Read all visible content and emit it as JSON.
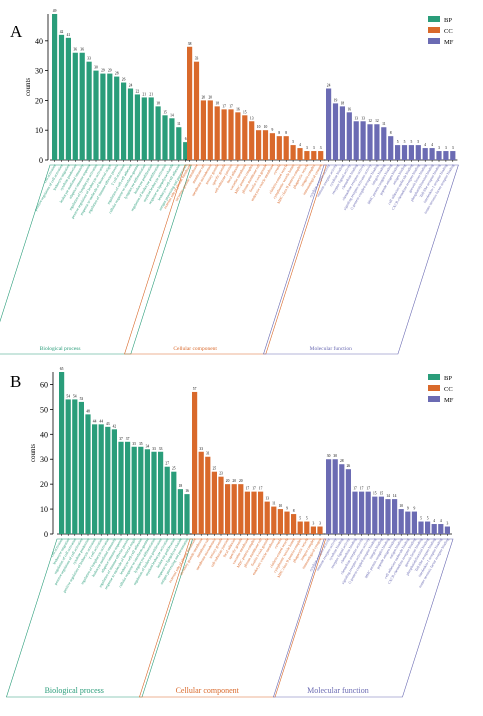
{
  "colors": {
    "BP": "#2a9d7a",
    "CC": "#d9692b",
    "MF": "#6b6bb3"
  },
  "chart_data": [
    {
      "type": "bar",
      "panel_letter": "A",
      "ylabel": "counts",
      "ylim": [
        0,
        49
      ],
      "yticks": [
        0,
        10,
        20,
        30,
        40
      ],
      "legend": [
        "BP",
        "CC",
        "MF"
      ],
      "legend_position": "top-right",
      "groups": [
        {
          "name": "Biological process",
          "key": "BP",
          "values": [
            49,
            42,
            41,
            36,
            36,
            33,
            30,
            29,
            29,
            28,
            26,
            24,
            22,
            21,
            21,
            18,
            15,
            14,
            11,
            6
          ],
          "categories": [
            "cell activation",
            "positive regulation of cell activation",
            "leukocyte migration",
            "cytokine production",
            "leukocyte mediated immunity",
            "adaptive immune response",
            "regulation of lymphocyte activation",
            "positive regulation of leukocyte activation",
            "response to molecule of bacterial origin",
            "regulation of immune effector process",
            "T cell activation",
            "regulation of cell-cell adhesion",
            "cellular response to interferon-gamma",
            "lymphocyte differentiation",
            "leukocyte proliferation",
            "regulation of leukocyte proliferation",
            "myeloid leukocyte activation",
            "response to lipopolysaccharide",
            "leukocyte cell-cell adhesion",
            "antigen processing and presentation"
          ]
        },
        {
          "name": "Cellular component",
          "key": "CC",
          "values": [
            38,
            33,
            20,
            20,
            18,
            17,
            17,
            16,
            15,
            13,
            10,
            10,
            9,
            8,
            8,
            5,
            4,
            3,
            3,
            3
          ],
          "categories": [
            "external side of plasma membrane",
            "secretory granule membrane",
            "membrane raft",
            "membrane microdomain",
            "tertiary granule",
            "specific granule",
            "cell-substrate junction",
            "focal adhesion",
            "vacuolar membrane",
            "MHC protein complex",
            "plasma membrane raft",
            "ficolin-1-rich granule",
            "endocytic vesicle membrane",
            "caveola",
            "clathrin-coated vesicle",
            "cytoplasmic vesicle lumen",
            "MHC class II protein complex",
            "phagocytic vesicle",
            "integrin complex",
            "immunological synapse"
          ]
        },
        {
          "name": "Molecular function",
          "key": "MF",
          "values": [
            24,
            19,
            18,
            16,
            13,
            13,
            12,
            12,
            11,
            8,
            5,
            5,
            5,
            5,
            4,
            4,
            3,
            3,
            3
          ],
          "categories": [
            "cytokine receptor activity",
            "immune receptor activity",
            "cytokine binding",
            "receptor ligand activity",
            "chemokine binding",
            "chemokine receptor activity",
            "signaling receptor activator activity",
            "G protein-coupled receptor binding",
            "integrin binding",
            "MHC protein complex binding",
            "peptide antigen binding",
            "antigen binding",
            "cell adhesion molecule binding",
            "CXCR chemokine receptor binding",
            "growth factor binding",
            "phosphatidylinositol binding",
            "Toll-like receptor binding",
            "interleukin-1 receptor binding",
            "tumor necrosis factor receptor binding"
          ]
        }
      ]
    },
    {
      "type": "bar",
      "panel_letter": "B",
      "ylabel": "counts",
      "ylim": [
        0,
        65
      ],
      "yticks": [
        0,
        10,
        20,
        30,
        40,
        50,
        60
      ],
      "legend": [
        "BP",
        "CC",
        "MF"
      ],
      "legend_position": "top-right",
      "groups": [
        {
          "name": "Biological process",
          "key": "BP",
          "values": [
            65,
            54,
            54,
            53,
            48,
            44,
            44,
            43,
            42,
            37,
            37,
            35,
            35,
            34,
            33,
            33,
            27,
            25,
            18,
            16
          ],
          "categories": [
            "cell activation",
            "leukocyte migration",
            "regulation of cell activation",
            "positive regulation of cell activation",
            "cytokine production",
            "positive regulation of leukocyte activation",
            "T cell activation",
            "regulation of lymphocyte activation",
            "leukocyte mediated immunity",
            "adaptive immune response",
            "regulation of immune effector process",
            "response to molecule of bacterial origin",
            "leukocyte cell-cell adhesion",
            "cellular response to interferon-gamma",
            "lymphocyte differentiation",
            "regulation of leukocyte proliferation",
            "myeloid leukocyte activation",
            "leukocyte proliferation",
            "response to lipopolysaccharide",
            "antigen processing and presentation"
          ]
        },
        {
          "name": "Cellular component",
          "key": "CC",
          "values": [
            57,
            33,
            31,
            25,
            23,
            20,
            20,
            20,
            17,
            17,
            17,
            13,
            11,
            10,
            9,
            8,
            5,
            5,
            3,
            3
          ],
          "categories": [
            "external side of plasma membrane",
            "secretory granule membrane",
            "membrane raft",
            "membrane microdomain",
            "tertiary granule",
            "cell-substrate junction",
            "focal adhesion",
            "specific granule",
            "vacuolar membrane",
            "MHC protein complex",
            "plasma membrane raft",
            "ficolin-1-rich granule",
            "endocytic vesicle membrane",
            "caveola",
            "clathrin-coated vesicle",
            "cytoplasmic vesicle lumen",
            "MHC class II protein complex",
            "phagocytic vesicle",
            "integrin complex",
            "immunological synapse"
          ]
        },
        {
          "name": "Molecular function",
          "key": "MF",
          "values": [
            30,
            30,
            28,
            26,
            17,
            17,
            17,
            15,
            15,
            14,
            14,
            10,
            9,
            9,
            5,
            5,
            4,
            4,
            3
          ],
          "categories": [
            "cytokine receptor activity",
            "immune receptor activity",
            "cytokine binding",
            "receptor ligand activity",
            "chemokine binding",
            "chemokine receptor activity",
            "signaling receptor activator activity",
            "G protein-coupled receptor binding",
            "integrin binding",
            "MHC protein complex binding",
            "peptide antigen binding",
            "antigen binding",
            "cell adhesion molecule binding",
            "CXCR chemokine receptor binding",
            "growth factor binding",
            "phosphatidylinositol binding",
            "Toll-like receptor binding",
            "interleukin-1 receptor binding",
            "tumor necrosis factor receptor binding"
          ]
        }
      ]
    }
  ]
}
